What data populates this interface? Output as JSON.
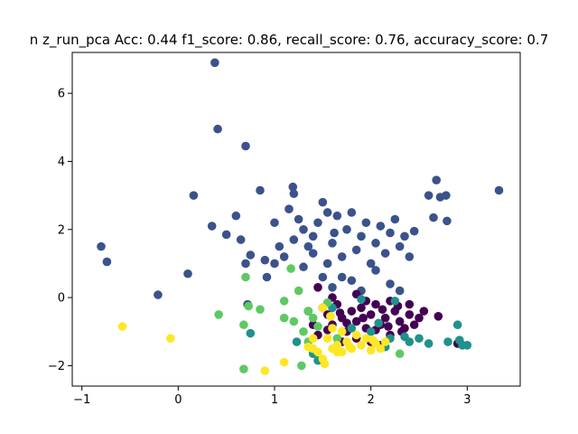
{
  "chart_data": {
    "type": "scatter",
    "title": "n z_run_pca  Acc: 0.44 f1_score: 0.86, recall_score: 0.76, accuracy_score: 0.7",
    "xlabel": "",
    "ylabel": "",
    "xlim": [
      -1.1,
      3.55
    ],
    "ylim": [
      -2.6,
      7.2
    ],
    "x_ticks": [
      -1,
      0,
      1,
      2,
      3
    ],
    "x_tick_labels": [
      "−1",
      "0",
      "1",
      "2",
      "3"
    ],
    "y_ticks": [
      -2,
      0,
      2,
      4,
      6
    ],
    "y_tick_labels": [
      "−2",
      "0",
      "2",
      "4",
      "6"
    ],
    "grid": false,
    "legend": "none",
    "series": [
      {
        "color": "#3b528b",
        "points": [
          [
            0.38,
            6.9
          ],
          [
            0.41,
            4.95
          ],
          [
            0.7,
            4.45
          ],
          [
            3.33,
            3.15
          ],
          [
            2.68,
            3.45
          ],
          [
            2.6,
            3.0
          ],
          [
            2.72,
            2.95
          ],
          [
            2.78,
            3.0
          ],
          [
            2.79,
            2.25
          ],
          [
            2.65,
            2.35
          ],
          [
            0.16,
            3.0
          ],
          [
            -0.8,
            1.5
          ],
          [
            -0.74,
            1.05
          ],
          [
            0.1,
            0.7
          ],
          [
            -0.21,
            0.08
          ],
          [
            0.35,
            2.1
          ],
          [
            0.5,
            1.85
          ],
          [
            0.6,
            2.4
          ],
          [
            0.65,
            1.7
          ],
          [
            0.75,
            1.25
          ],
          [
            0.85,
            3.15
          ],
          [
            1.19,
            3.25
          ],
          [
            1.2,
            3.05
          ],
          [
            0.7,
            1.0
          ],
          [
            0.72,
            -0.2
          ],
          [
            0.9,
            1.1
          ],
          [
            0.92,
            0.6
          ],
          [
            1.0,
            1.0
          ],
          [
            1.05,
            1.5
          ],
          [
            1.1,
            1.2
          ],
          [
            1.15,
            2.6
          ],
          [
            1.25,
            2.3
          ],
          [
            1.3,
            2.0
          ],
          [
            1.35,
            1.5
          ],
          [
            1.4,
            1.8
          ],
          [
            1.45,
            2.2
          ],
          [
            1.5,
            2.8
          ],
          [
            1.55,
            1.0
          ],
          [
            1.6,
            1.6
          ],
          [
            1.65,
            2.4
          ],
          [
            1.7,
            1.2
          ],
          [
            1.75,
            2.0
          ],
          [
            1.8,
            2.5
          ],
          [
            1.85,
            1.4
          ],
          [
            1.9,
            1.8
          ],
          [
            1.95,
            2.2
          ],
          [
            2.0,
            1.0
          ],
          [
            2.05,
            1.6
          ],
          [
            2.1,
            2.1
          ],
          [
            2.15,
            1.3
          ],
          [
            2.2,
            1.9
          ],
          [
            2.25,
            2.3
          ],
          [
            2.3,
            1.5
          ],
          [
            2.35,
            1.8
          ],
          [
            2.4,
            1.2
          ],
          [
            2.45,
            1.95
          ],
          [
            1.0,
            2.2
          ],
          [
            1.2,
            1.7
          ],
          [
            1.3,
            0.9
          ],
          [
            1.5,
            0.6
          ],
          [
            1.6,
            0.3
          ],
          [
            1.7,
            0.6
          ],
          [
            1.8,
            0.5
          ],
          [
            1.9,
            0.2
          ],
          [
            2.05,
            0.8
          ],
          [
            2.2,
            0.4
          ],
          [
            2.3,
            0.2
          ],
          [
            1.4,
            1.3
          ],
          [
            1.55,
            2.5
          ],
          [
            1.62,
            1.9
          ]
        ]
      },
      {
        "color": "#440154",
        "points": [
          [
            1.5,
            -0.3
          ],
          [
            1.55,
            -0.5
          ],
          [
            1.6,
            -0.8
          ],
          [
            1.65,
            -0.2
          ],
          [
            1.7,
            -0.6
          ],
          [
            1.75,
            -1.0
          ],
          [
            1.8,
            -0.4
          ],
          [
            1.85,
            -0.7
          ],
          [
            1.9,
            -0.3
          ],
          [
            1.95,
            -0.9
          ],
          [
            2.0,
            -0.5
          ],
          [
            2.05,
            -0.2
          ],
          [
            2.1,
            -0.8
          ],
          [
            2.15,
            -0.6
          ],
          [
            2.2,
            -1.1
          ],
          [
            2.25,
            -0.4
          ],
          [
            2.3,
            -0.7
          ],
          [
            2.35,
            -0.9
          ],
          [
            2.4,
            -0.5
          ],
          [
            2.45,
            -0.8
          ],
          [
            2.5,
            -0.6
          ],
          [
            2.55,
            -0.4
          ],
          [
            2.7,
            -0.55
          ],
          [
            2.9,
            -1.35
          ],
          [
            1.4,
            -0.8
          ],
          [
            1.45,
            -1.1
          ],
          [
            1.7,
            -1.3
          ],
          [
            1.85,
            -1.2
          ],
          [
            2.0,
            -1.3
          ],
          [
            2.1,
            -1.4
          ],
          [
            1.35,
            -0.4
          ],
          [
            1.45,
            0.3
          ],
          [
            1.6,
            0.0
          ],
          [
            1.85,
            0.1
          ],
          [
            2.2,
            -0.1
          ],
          [
            2.4,
            -0.2
          ],
          [
            1.95,
            -0.1
          ],
          [
            2.05,
            -0.95
          ],
          [
            1.75,
            -0.75
          ],
          [
            2.28,
            -0.25
          ],
          [
            1.55,
            -0.95
          ],
          [
            1.68,
            -0.45
          ],
          [
            1.92,
            -0.6
          ],
          [
            2.12,
            -0.35
          ],
          [
            2.32,
            -1.0
          ],
          [
            2.18,
            -0.85
          ]
        ]
      },
      {
        "color": "#21918c",
        "points": [
          [
            0.75,
            -1.05
          ],
          [
            1.23,
            -1.3
          ],
          [
            1.4,
            -1.65
          ],
          [
            1.45,
            -1.85
          ],
          [
            1.6,
            -0.3
          ],
          [
            1.8,
            -0.9
          ],
          [
            2.0,
            -1.0
          ],
          [
            2.2,
            -1.2
          ],
          [
            2.4,
            -1.3
          ],
          [
            2.5,
            -1.2
          ],
          [
            2.6,
            -1.35
          ],
          [
            2.8,
            -1.3
          ],
          [
            2.9,
            -0.8
          ],
          [
            2.92,
            -1.25
          ],
          [
            2.95,
            -1.4
          ],
          [
            3.0,
            -1.4
          ],
          [
            2.25,
            -0.1
          ],
          [
            1.9,
            -0.05
          ],
          [
            2.15,
            -1.45
          ],
          [
            2.35,
            -1.15
          ],
          [
            1.58,
            -0.55
          ],
          [
            2.08,
            -0.75
          ]
        ]
      },
      {
        "color": "#5ec962",
        "points": [
          [
            0.7,
            0.6
          ],
          [
            1.17,
            0.85
          ],
          [
            1.1,
            -0.1
          ],
          [
            1.25,
            0.2
          ],
          [
            1.35,
            -0.4
          ],
          [
            1.4,
            -0.6
          ],
          [
            0.73,
            -0.25
          ],
          [
            0.85,
            -0.35
          ],
          [
            0.68,
            -0.8
          ],
          [
            0.42,
            -0.5
          ],
          [
            1.1,
            -0.6
          ],
          [
            1.2,
            -0.7
          ],
          [
            1.3,
            -1.0
          ],
          [
            1.35,
            -1.3
          ],
          [
            1.28,
            -2.0
          ],
          [
            0.68,
            -2.1
          ],
          [
            1.45,
            -0.85
          ],
          [
            2.3,
            -1.65
          ],
          [
            1.65,
            -1.2
          ],
          [
            1.55,
            -0.15
          ]
        ]
      },
      {
        "color": "#fde725",
        "points": [
          [
            -0.58,
            -0.85
          ],
          [
            -0.08,
            -1.2
          ],
          [
            0.9,
            -2.15
          ],
          [
            1.1,
            -1.9
          ],
          [
            1.4,
            -1.5
          ],
          [
            1.45,
            -1.6
          ],
          [
            1.5,
            -1.8
          ],
          [
            1.52,
            -1.95
          ],
          [
            1.55,
            -1.2
          ],
          [
            1.6,
            -1.5
          ],
          [
            1.65,
            -1.4
          ],
          [
            1.7,
            -1.6
          ],
          [
            1.75,
            -1.3
          ],
          [
            1.8,
            -1.5
          ],
          [
            1.85,
            -1.1
          ],
          [
            1.9,
            -1.4
          ],
          [
            1.95,
            -1.2
          ],
          [
            2.0,
            -1.55
          ],
          [
            2.05,
            -1.35
          ],
          [
            2.1,
            -1.5
          ],
          [
            2.15,
            -1.3
          ],
          [
            1.5,
            -0.3
          ],
          [
            1.6,
            -0.9
          ],
          [
            1.7,
            -1.0
          ],
          [
            1.4,
            -1.2
          ],
          [
            1.35,
            -1.45
          ],
          [
            1.65,
            -1.6
          ],
          [
            1.78,
            -1.45
          ],
          [
            2.02,
            -1.25
          ],
          [
            1.58,
            -0.55
          ]
        ]
      }
    ]
  }
}
